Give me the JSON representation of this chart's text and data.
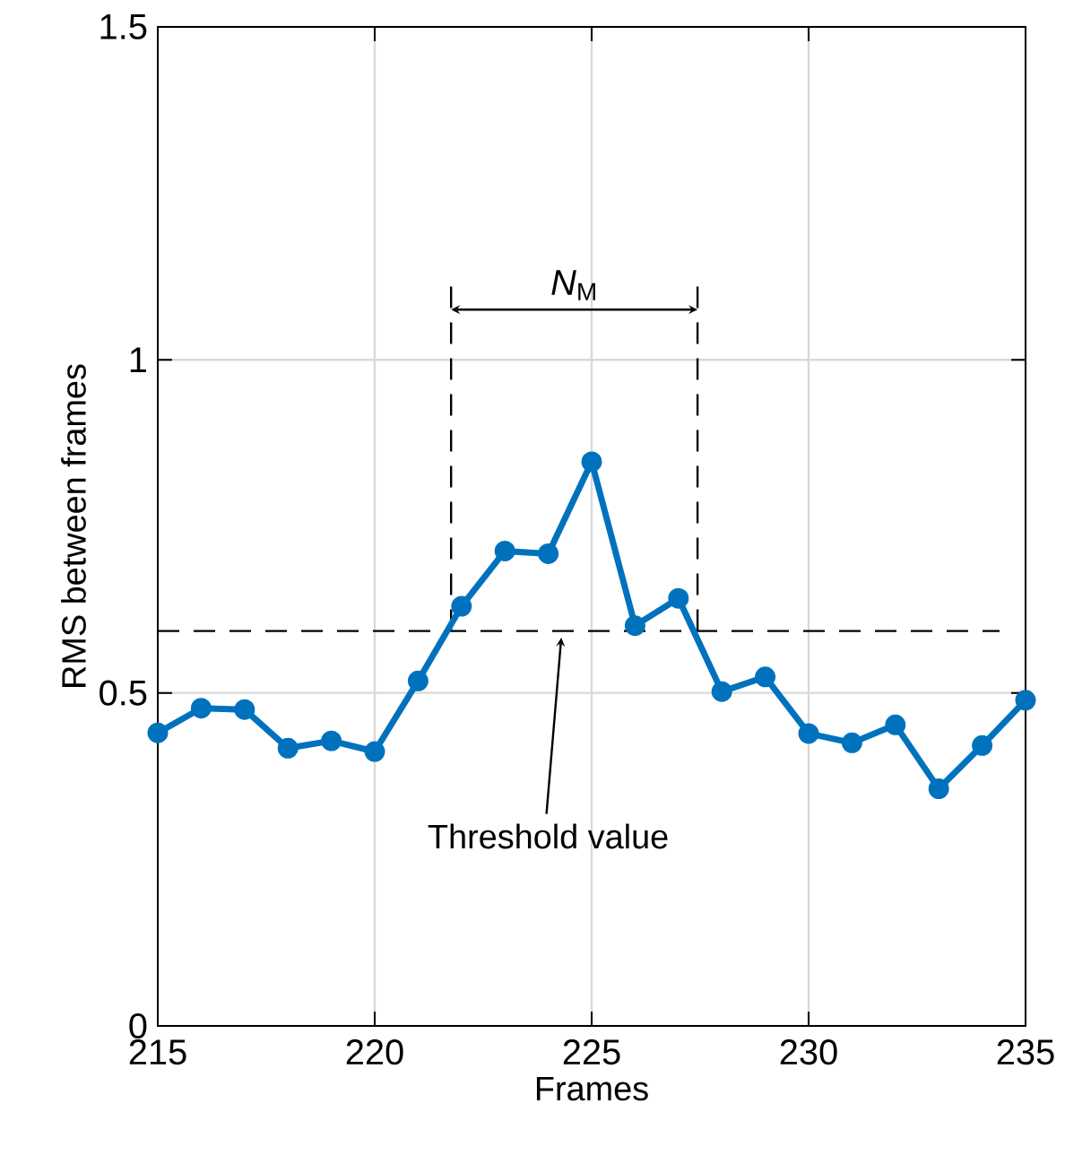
{
  "chart_data": {
    "type": "line",
    "xlabel": "Frames",
    "ylabel": "RMS between frames",
    "x": [
      215,
      216,
      217,
      218,
      219,
      220,
      221,
      222,
      223,
      224,
      225,
      226,
      227,
      228,
      229,
      230,
      231,
      232,
      233,
      234,
      235
    ],
    "series": [
      {
        "color": "#0072bd",
        "values": [
          0.44,
          0.477,
          0.475,
          0.417,
          0.428,
          0.412,
          0.518,
          0.63,
          0.713,
          0.709,
          0.847,
          0.601,
          0.642,
          0.502,
          0.524,
          0.439,
          0.425,
          0.452,
          0.356,
          0.421,
          0.489
        ]
      }
    ],
    "xlim": [
      215,
      235
    ],
    "ylim": [
      0,
      1.5
    ],
    "xticks": [
      215,
      220,
      225,
      230,
      235
    ],
    "yticks": [
      0,
      0.5,
      1,
      1.5
    ],
    "grid": true,
    "marker": "circle",
    "line_style": "solid",
    "ref_lines": [
      {
        "axis": "y",
        "value": 0.593,
        "line_style": "dashed",
        "color": "#000000"
      },
      {
        "axis": "x",
        "value": 221.76,
        "line_style": "dashed",
        "color": "#000000"
      },
      {
        "axis": "x",
        "value": 227.44,
        "line_style": "dashed",
        "color": "#000000"
      }
    ],
    "annotations": [
      "*N*$_{M}$",
      {
        "text": "Threshold value",
        "x": 224.3,
        "y": 0.593
      }
    ]
  }
}
